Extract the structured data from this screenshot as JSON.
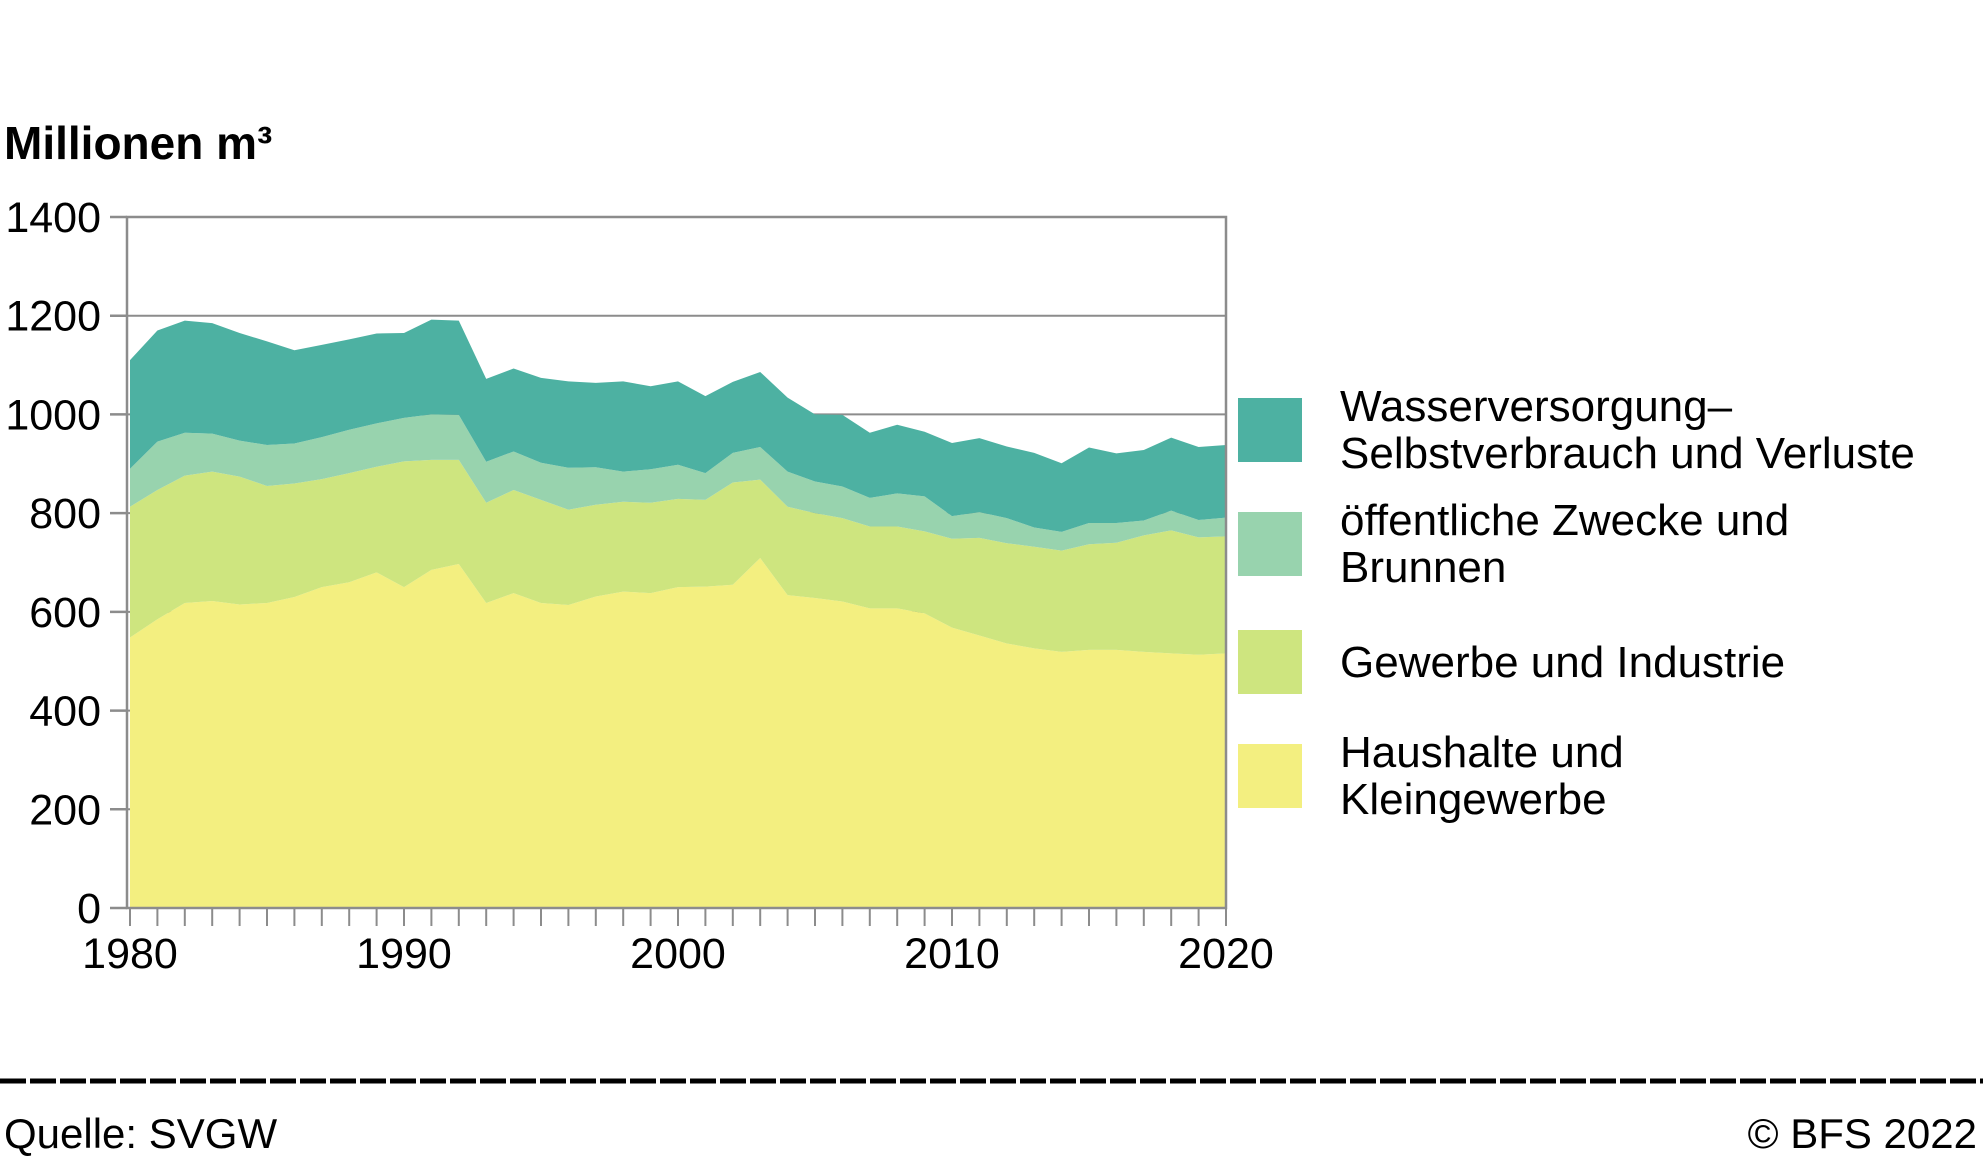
{
  "title": "Millionen m³",
  "colors": {
    "grid": "#8c8c8c",
    "frame": "#8c8c8c",
    "text": "#000000",
    "background": "#ffffff"
  },
  "chart_data": {
    "type": "area",
    "stacked": true,
    "title": "Millionen m³",
    "xlabel": "",
    "ylabel": "Millionen m³",
    "ylim": [
      0,
      1400
    ],
    "y_ticks": [
      0,
      200,
      400,
      600,
      800,
      1000,
      1200,
      1400
    ],
    "x_tick_labels": [
      1980,
      1990,
      2000,
      2010,
      2020
    ],
    "x_tick_step": 1,
    "grid": "horizontal",
    "legend_position": "right",
    "x": [
      1980,
      1981,
      1982,
      1983,
      1984,
      1985,
      1986,
      1987,
      1988,
      1989,
      1990,
      1991,
      1992,
      1993,
      1994,
      1995,
      1996,
      1997,
      1998,
      1999,
      2000,
      2001,
      2002,
      2003,
      2004,
      2005,
      2006,
      2007,
      2008,
      2009,
      2010,
      2011,
      2012,
      2013,
      2014,
      2015,
      2016,
      2017,
      2018,
      2019,
      2020
    ],
    "series": [
      {
        "id": "haushalte",
        "name": "Haushalte und Kleingewerbe",
        "color": "#F3EF80",
        "values": [
          548,
          585,
          618,
          622,
          615,
          618,
          630,
          650,
          660,
          680,
          650,
          685,
          697,
          618,
          638,
          618,
          614,
          631,
          641,
          638,
          650,
          651,
          655,
          709,
          634,
          628,
          621,
          607,
          607,
          597,
          568,
          552,
          536,
          526,
          519,
          523,
          523,
          519,
          516,
          513,
          516
        ]
      },
      {
        "id": "gewerbe",
        "name": "Gewerbe und Industrie",
        "color": "#CEE57F",
        "values": [
          265,
          262,
          258,
          262,
          259,
          237,
          230,
          219,
          221,
          214,
          255,
          223,
          211,
          203,
          209,
          209,
          193,
          186,
          182,
          183,
          179,
          176,
          207,
          159,
          179,
          172,
          169,
          166,
          166,
          166,
          180,
          198,
          203,
          206,
          205,
          214,
          217,
          236,
          249,
          238,
          237
        ]
      },
      {
        "id": "oeffentliche-zwecke",
        "name": "öffentliche Zwecke und Brunnen",
        "color": "#98D3AE",
        "values": [
          77,
          98,
          87,
          77,
          73,
          83,
          81,
          85,
          88,
          88,
          88,
          92,
          91,
          83,
          78,
          75,
          85,
          76,
          61,
          68,
          69,
          54,
          60,
          66,
          71,
          64,
          64,
          58,
          67,
          71,
          46,
          52,
          51,
          39,
          38,
          43,
          40,
          30,
          40,
          35,
          38
        ]
      },
      {
        "id": "wasserversorgung",
        "name": "Wasserversorgung–Selbstverbrauch und Verluste",
        "color": "#4DB1A2",
        "values": [
          220,
          225,
          227,
          224,
          218,
          210,
          189,
          187,
          183,
          182,
          172,
          192,
          191,
          168,
          168,
          172,
          175,
          171,
          183,
          168,
          169,
          156,
          144,
          152,
          150,
          136,
          145,
          132,
          139,
          131,
          148,
          150,
          145,
          151,
          139,
          153,
          141,
          143,
          148,
          148,
          147
        ]
      }
    ]
  },
  "legend": {
    "items": [
      {
        "color": "#4DB1A2",
        "lines": [
          "Wasserversorgung–",
          "Selbstverbrauch und Verluste"
        ]
      },
      {
        "color": "#98D3AE",
        "lines": [
          "öffentliche Zwecke und",
          "Brunnen"
        ]
      },
      {
        "color": "#CEE57F",
        "lines": [
          "Gewerbe und Industrie"
        ]
      },
      {
        "color": "#F3EF80",
        "lines": [
          "Haushalte und",
          "Kleingewerbe"
        ]
      }
    ]
  },
  "footer": {
    "source": "Quelle: SVGW",
    "copyright": "© BFS 2022"
  }
}
